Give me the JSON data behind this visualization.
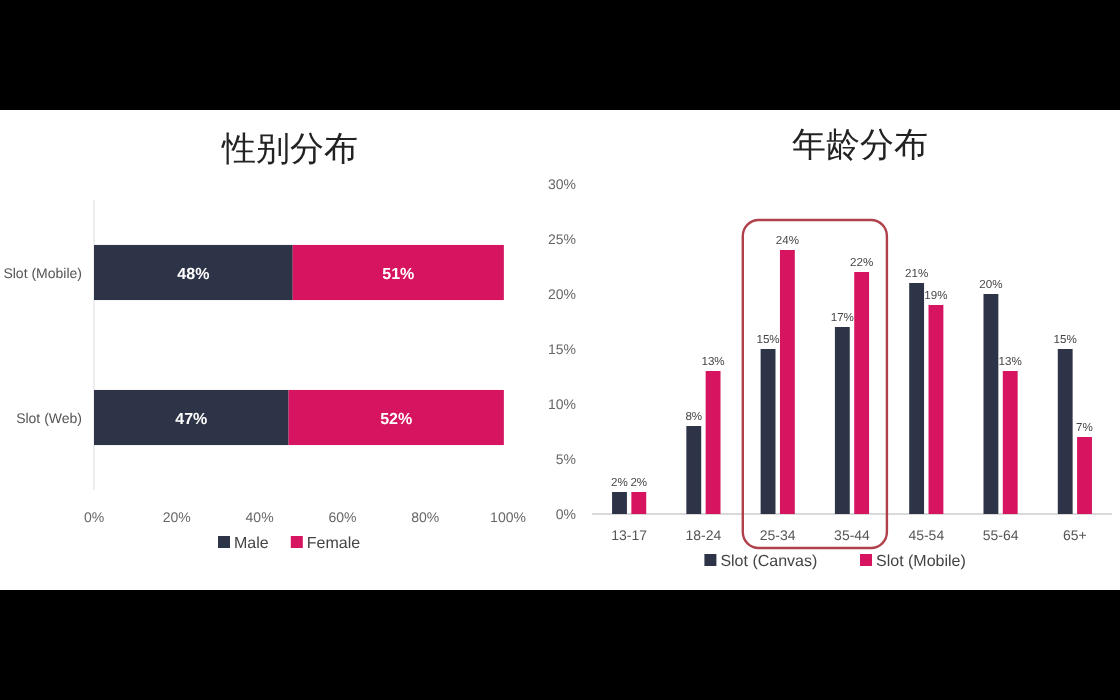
{
  "chart_data": [
    {
      "type": "bar",
      "title": "性别分布",
      "orientation": "horizontal",
      "stacked": true,
      "categories": [
        "Slot (Mobile)",
        "Slot (Web)"
      ],
      "series": [
        {
          "name": "Male",
          "color": "#2d3447",
          "values": [
            48,
            47
          ],
          "value_labels": [
            "48%",
            "47%"
          ]
        },
        {
          "name": "Female",
          "color": "#d6145f",
          "values": [
            51,
            52
          ],
          "value_labels": [
            "51%",
            "52%"
          ]
        }
      ],
      "xlim": [
        0,
        100
      ],
      "xticks": [
        {
          "value": 0,
          "label": "0%"
        },
        {
          "value": 20,
          "label": "20%"
        },
        {
          "value": 40,
          "label": "40%"
        },
        {
          "value": 60,
          "label": "60%"
        },
        {
          "value": 80,
          "label": "80%"
        },
        {
          "value": 100,
          "label": "100%"
        }
      ],
      "legend": "bottom",
      "grid": false
    },
    {
      "type": "bar",
      "title": "年龄分布",
      "categories": [
        "13-17",
        "18-24",
        "25-34",
        "35-44",
        "45-54",
        "55-64",
        "65+"
      ],
      "series": [
        {
          "name": "Slot (Canvas)",
          "color": "#2d3447",
          "values": [
            2,
            8,
            15,
            17,
            21,
            20,
            15
          ],
          "value_labels": [
            "2%",
            "8%",
            "15%",
            "17%",
            "21%",
            "20%",
            "15%"
          ]
        },
        {
          "name": "Slot (Mobile)",
          "color": "#d6145f",
          "values": [
            2,
            13,
            24,
            22,
            19,
            13,
            7
          ],
          "value_labels": [
            "2%",
            "13%",
            "24%",
            "22%",
            "19%",
            "13%",
            "7%"
          ]
        }
      ],
      "ylim": [
        0,
        30
      ],
      "yticks": [
        {
          "value": 0,
          "label": "0%"
        },
        {
          "value": 5,
          "label": "5%"
        },
        {
          "value": 10,
          "label": "10%"
        },
        {
          "value": 15,
          "label": "15%"
        },
        {
          "value": 20,
          "label": "20%"
        },
        {
          "value": 25,
          "label": "25%"
        },
        {
          "value": 30,
          "label": "30%"
        }
      ],
      "legend": "bottom",
      "grid": false
    }
  ]
}
